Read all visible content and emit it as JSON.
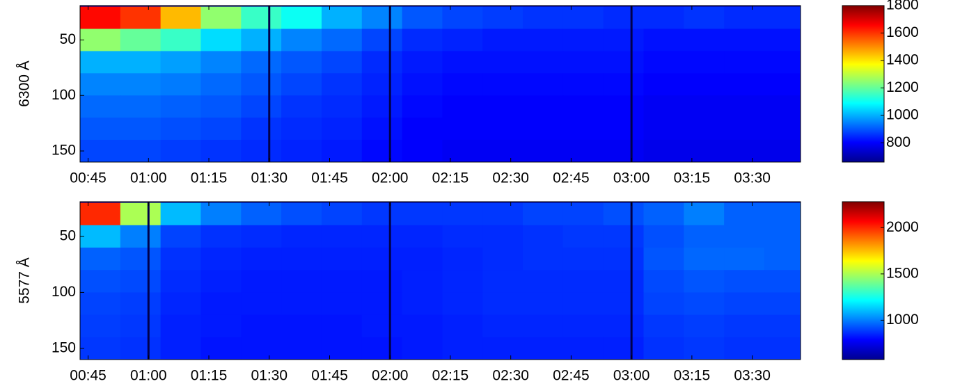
{
  "chart_data": [
    {
      "type": "heatmap",
      "y_label": "6300 Å",
      "colormap": "jet",
      "x": [
        48,
        58,
        68,
        78,
        88,
        98,
        108,
        118,
        128,
        138,
        148,
        158,
        168,
        178,
        188,
        198,
        208,
        218
      ],
      "y": [
        30,
        50,
        70,
        90,
        110,
        130,
        150
      ],
      "z": [
        [
          1650,
          1600,
          1450,
          1250,
          1150,
          1100,
          1000,
          950,
          900,
          880,
          870,
          860,
          860,
          850,
          850,
          860,
          850,
          850
        ],
        [
          1250,
          1200,
          1150,
          1050,
          1000,
          950,
          920,
          880,
          850,
          840,
          830,
          830,
          830,
          830,
          820,
          820,
          820,
          820
        ],
        [
          1000,
          1000,
          980,
          950,
          920,
          900,
          880,
          850,
          830,
          820,
          820,
          820,
          820,
          820,
          810,
          810,
          810,
          810
        ],
        [
          950,
          950,
          940,
          920,
          900,
          880,
          860,
          840,
          820,
          810,
          810,
          810,
          810,
          810,
          800,
          800,
          800,
          800
        ],
        [
          920,
          920,
          910,
          900,
          880,
          860,
          850,
          830,
          810,
          800,
          800,
          800,
          800,
          800,
          790,
          790,
          790,
          790
        ],
        [
          900,
          900,
          890,
          880,
          860,
          850,
          840,
          820,
          800,
          800,
          800,
          800,
          800,
          800,
          790,
          790,
          790,
          790
        ],
        [
          880,
          880,
          870,
          860,
          850,
          840,
          830,
          810,
          800,
          790,
          790,
          790,
          790,
          790,
          780,
          780,
          780,
          780
        ]
      ],
      "gaps": [
        90,
        120,
        180
      ],
      "xlim": [
        43,
        222
      ],
      "ylim": [
        160,
        19
      ],
      "xticks": [
        {
          "value": 45,
          "label": "00:45"
        },
        {
          "value": 60,
          "label": "01:00"
        },
        {
          "value": 75,
          "label": "01:15"
        },
        {
          "value": 90,
          "label": "01:30"
        },
        {
          "value": 105,
          "label": "01:45"
        },
        {
          "value": 120,
          "label": "02:00"
        },
        {
          "value": 135,
          "label": "02:15"
        },
        {
          "value": 150,
          "label": "02:30"
        },
        {
          "value": 165,
          "label": "02:45"
        },
        {
          "value": 180,
          "label": "03:00"
        },
        {
          "value": 195,
          "label": "03:15"
        },
        {
          "value": 210,
          "label": "03:30"
        }
      ],
      "yticks": [
        50,
        100,
        150
      ],
      "clim": [
        660,
        1800
      ],
      "cticks": [
        800,
        1000,
        1200,
        1400,
        1600,
        1800
      ]
    },
    {
      "type": "heatmap",
      "y_label": "5577 Å",
      "colormap": "jet",
      "x": [
        48,
        58,
        68,
        78,
        88,
        98,
        108,
        118,
        128,
        138,
        148,
        158,
        168,
        178,
        188,
        198,
        208,
        218
      ],
      "y": [
        30,
        50,
        70,
        90,
        110,
        130,
        150
      ],
      "z": [
        [
          2000,
          1500,
          1100,
          1000,
          950,
          920,
          900,
          880,
          880,
          880,
          880,
          900,
          900,
          920,
          950,
          1000,
          950,
          950
        ],
        [
          1100,
          1000,
          900,
          870,
          860,
          850,
          850,
          850,
          850,
          860,
          860,
          870,
          880,
          880,
          920,
          950,
          950,
          950
        ],
        [
          950,
          930,
          870,
          850,
          840,
          840,
          840,
          840,
          840,
          850,
          860,
          870,
          870,
          870,
          930,
          960,
          960,
          950
        ],
        [
          920,
          910,
          860,
          840,
          830,
          830,
          830,
          830,
          840,
          850,
          860,
          860,
          860,
          860,
          910,
          930,
          920,
          920
        ],
        [
          900,
          890,
          850,
          830,
          830,
          830,
          830,
          830,
          840,
          850,
          860,
          860,
          860,
          860,
          900,
          910,
          900,
          900
        ],
        [
          890,
          880,
          840,
          830,
          820,
          820,
          820,
          830,
          830,
          840,
          850,
          850,
          850,
          850,
          880,
          890,
          880,
          880
        ],
        [
          880,
          870,
          840,
          820,
          820,
          820,
          820,
          820,
          830,
          840,
          840,
          840,
          840,
          840,
          870,
          880,
          870,
          870
        ]
      ],
      "gaps": [
        60,
        120,
        180
      ],
      "xlim": [
        43,
        222
      ],
      "ylim": [
        160,
        19
      ],
      "xticks": [
        {
          "value": 45,
          "label": "00:45"
        },
        {
          "value": 60,
          "label": "01:00"
        },
        {
          "value": 75,
          "label": "01:15"
        },
        {
          "value": 90,
          "label": "01:30"
        },
        {
          "value": 105,
          "label": "01:45"
        },
        {
          "value": 120,
          "label": "02:00"
        },
        {
          "value": 135,
          "label": "02:15"
        },
        {
          "value": 150,
          "label": "02:30"
        },
        {
          "value": 165,
          "label": "02:45"
        },
        {
          "value": 180,
          "label": "03:00"
        },
        {
          "value": 195,
          "label": "03:15"
        },
        {
          "value": 210,
          "label": "03:30"
        }
      ],
      "yticks": [
        50,
        100,
        150
      ],
      "clim": [
        575,
        2280
      ],
      "cticks": [
        1000,
        1500,
        2000
      ]
    }
  ]
}
